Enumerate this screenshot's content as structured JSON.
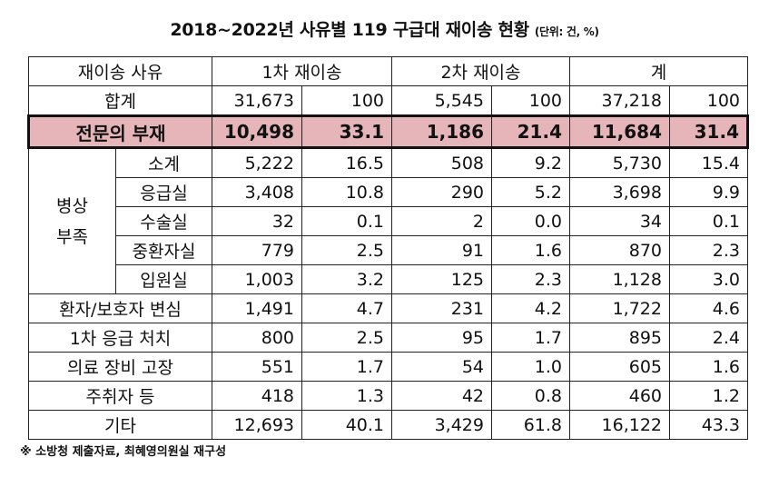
{
  "title": "2018~2022년 사유별 119 구급대 재이송 현황",
  "unit": "(단위: 건, %)",
  "headers": [
    "재이송 사유",
    "1차 재이송",
    "2차 재이송",
    "계"
  ],
  "total_row": {
    "label": "합계",
    "values": [
      "31,673",
      "100",
      "5,545",
      "100",
      "37,218",
      "100"
    ]
  },
  "specialist_row": {
    "label": "전문의 부재",
    "values": [
      "10,498",
      "33.1",
      "1,186",
      "21.4",
      "11,684",
      "31.4"
    ]
  },
  "group": {
    "line1": "병상",
    "line2": "부족",
    "rows": [
      {
        "label": "소계",
        "values": [
          "5,222",
          "16.5",
          "508",
          "9.2",
          "5,730",
          "15.4"
        ]
      },
      {
        "label": "응급실",
        "values": [
          "3,408",
          "10.8",
          "290",
          "5.2",
          "3,698",
          "9.9"
        ]
      },
      {
        "label": "수술실",
        "values": [
          "32",
          "0.1",
          "2",
          "0.0",
          "34",
          "0.1"
        ]
      },
      {
        "label": "중환자실",
        "values": [
          "779",
          "2.5",
          "91",
          "1.6",
          "870",
          "2.3"
        ]
      },
      {
        "label": "입원실",
        "values": [
          "1,003",
          "3.2",
          "125",
          "2.3",
          "1,128",
          "3.0"
        ]
      }
    ]
  },
  "other_rows": [
    {
      "label": "환자/보호자 변심",
      "values": [
        "1,491",
        "4.7",
        "231",
        "4.2",
        "1,722",
        "4.6"
      ]
    },
    {
      "label": "1차 응급 처치",
      "values": [
        "800",
        "2.5",
        "95",
        "1.7",
        "895",
        "2.4"
      ]
    },
    {
      "label": "의료 장비 고장",
      "values": [
        "551",
        "1.7",
        "54",
        "1.0",
        "605",
        "1.6"
      ]
    },
    {
      "label": "주취자 등",
      "values": [
        "418",
        "1.3",
        "42",
        "0.8",
        "460",
        "1.2"
      ]
    },
    {
      "label": "기타",
      "values": [
        "12,693",
        "40.1",
        "3,429",
        "61.8",
        "16,122",
        "43.3"
      ]
    }
  ],
  "source_note": "※ 소방청 제출자료, 최혜영의원실 재구성"
}
